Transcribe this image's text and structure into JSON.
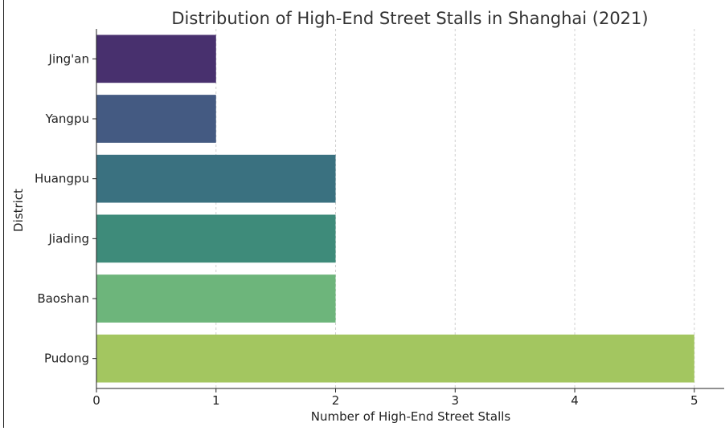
{
  "chart_data": {
    "type": "bar",
    "orientation": "horizontal",
    "title": "Distribution of High-End Street Stalls in Shanghai (2021)",
    "xlabel": "Number of High-End Street Stalls",
    "ylabel": "District",
    "categories": [
      "Jing'an",
      "Yangpu",
      "Huangpu",
      "Jiading",
      "Baoshan",
      "Pudong"
    ],
    "values": [
      1,
      1,
      2,
      2,
      2,
      5
    ],
    "colors": [
      "#48306e",
      "#445a82",
      "#3a7180",
      "#3e8b7a",
      "#6db57b",
      "#a3c660"
    ],
    "xlim": [
      0,
      5.25
    ],
    "xticks": [
      0,
      1,
      2,
      3,
      4,
      5
    ],
    "grid": "x-dashed",
    "legend": "none"
  }
}
